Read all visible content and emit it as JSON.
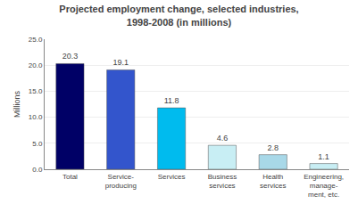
{
  "chart_data": {
    "type": "bar",
    "title": "Projected employment change, selected industries,\n1998-2008 (in millions)",
    "categories": [
      "Total",
      "Service-\nproducing",
      "Services",
      "Business\nservices",
      "Health\nservices",
      "Engineering,\nmanage-\nment, etc."
    ],
    "values": [
      20.3,
      19.1,
      11.8,
      4.6,
      2.8,
      1.1
    ],
    "colors": [
      "#000066",
      "#3355CC",
      "#00BBEE",
      "#C8EEF4",
      "#A8D8E8",
      "#C8EEF4"
    ],
    "ylabel": "Millions",
    "ylim": [
      0,
      25
    ],
    "yticks": [
      {
        "value": 0.0,
        "label": "0.0"
      },
      {
        "value": 5.0,
        "label": "5.0"
      },
      {
        "value": 10.0,
        "label": "10.0"
      },
      {
        "value": 15.0,
        "label": "15.0"
      },
      {
        "value": 20.0,
        "label": "20.0"
      },
      {
        "value": 25.0,
        "label": "25.0"
      }
    ],
    "grid": true,
    "data_labels": true
  }
}
